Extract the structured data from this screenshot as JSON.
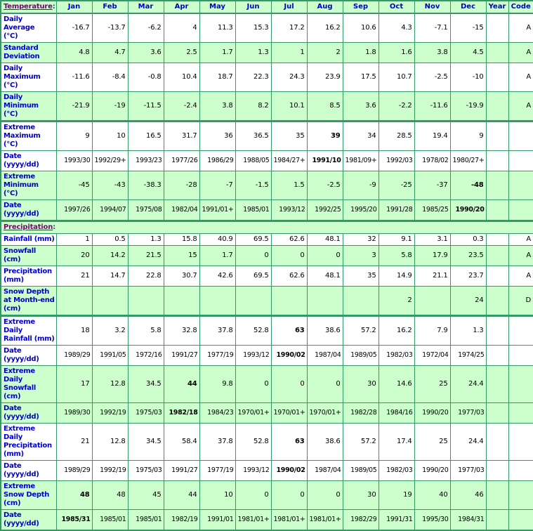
{
  "colors": {
    "row_green": "#ccffcc",
    "border_green": "#339966",
    "label_blue": "#0000cc",
    "link_purple": "#800080",
    "data_black": "#000000"
  },
  "table": {
    "colon": ":",
    "months": [
      "Jan",
      "Feb",
      "Mar",
      "Apr",
      "May",
      "Jun",
      "Jul",
      "Aug",
      "Sep",
      "Oct",
      "Nov",
      "Dec"
    ],
    "year_header": "Year",
    "code_header": "Code",
    "sections": [
      {
        "title": "Temperature",
        "rows": [
          {
            "label": "Daily Average\n(°C)",
            "shade": "w",
            "sep": false,
            "bold": [],
            "cells": [
              "-16.7",
              "-13.7",
              "-6.2",
              "4",
              "11.3",
              "15.3",
              "17.2",
              "16.2",
              "10.6",
              "4.3",
              "-7.1",
              "-15"
            ],
            "year": "",
            "code": "A"
          },
          {
            "label": "Standard\nDeviation",
            "shade": "g",
            "sep": false,
            "bold": [],
            "cells": [
              "4.8",
              "4.7",
              "3.6",
              "2.5",
              "1.7",
              "1.3",
              "1",
              "2",
              "1.8",
              "1.6",
              "3.8",
              "4.5"
            ],
            "year": "",
            "code": "A"
          },
          {
            "label": "Daily\nMaximum\n(°C)",
            "shade": "w",
            "sep": false,
            "bold": [],
            "cells": [
              "-11.6",
              "-8.4",
              "-0.8",
              "10.4",
              "18.7",
              "22.3",
              "24.3",
              "23.9",
              "17.5",
              "10.7",
              "-2.5",
              "-10"
            ],
            "year": "",
            "code": "A"
          },
          {
            "label": "Daily\nMinimum\n(°C)",
            "shade": "g",
            "sep": false,
            "bold": [],
            "cells": [
              "-21.9",
              "-19",
              "-11.5",
              "-2.4",
              "3.8",
              "8.2",
              "10.1",
              "8.5",
              "3.6",
              "-2.2",
              "-11.6",
              "-19.9"
            ],
            "year": "",
            "code": "A"
          },
          {
            "label": "Extreme\nMaximum\n(°C)",
            "shade": "w",
            "sep": true,
            "bold": [
              7
            ],
            "cells": [
              "9",
              "10",
              "16.5",
              "31.7",
              "36",
              "36.5",
              "35",
              "39",
              "34",
              "28.5",
              "19.4",
              "9"
            ],
            "year": "",
            "code": ""
          },
          {
            "label": "Date\n(yyyy/dd)",
            "shade": "w",
            "sep": false,
            "bold": [
              7
            ],
            "cells": [
              "1993/30",
              "1992/29+",
              "1993/23",
              "1977/26",
              "1986/29",
              "1988/05",
              "1984/27+",
              "1991/10",
              "1981/09+",
              "1992/03",
              "1978/02",
              "1980/27+"
            ],
            "year": "",
            "code": ""
          },
          {
            "label": "Extreme\nMinimum\n(°C)",
            "shade": "g",
            "sep": false,
            "bold": [
              11
            ],
            "cells": [
              "-45",
              "-43",
              "-38.3",
              "-28",
              "-7",
              "-1.5",
              "1.5",
              "-2.5",
              "-9",
              "-25",
              "-37",
              "-48"
            ],
            "year": "",
            "code": ""
          },
          {
            "label": "Date\n(yyyy/dd)",
            "shade": "g",
            "sep": false,
            "bold": [
              11
            ],
            "cells": [
              "1997/26",
              "1994/07",
              "1975/08",
              "1982/04",
              "1991/01+",
              "1985/01",
              "1993/12",
              "1992/25",
              "1995/20",
              "1991/28",
              "1985/25",
              "1990/20"
            ],
            "year": "",
            "code": ""
          }
        ]
      },
      {
        "title": "Precipitation",
        "rows": [
          {
            "label": "Rainfall (mm)",
            "shade": "w",
            "sep": false,
            "bold": [],
            "cells": [
              "1",
              "0.5",
              "1.3",
              "15.8",
              "40.9",
              "69.5",
              "62.6",
              "48.1",
              "32",
              "9.1",
              "3.1",
              "0.3"
            ],
            "year": "",
            "code": "A"
          },
          {
            "label": "Snowfall\n(cm)",
            "shade": "g",
            "sep": false,
            "bold": [],
            "cells": [
              "20",
              "14.2",
              "21.5",
              "15",
              "1.7",
              "0",
              "0",
              "0",
              "3",
              "5.8",
              "17.9",
              "23.5"
            ],
            "year": "",
            "code": "A"
          },
          {
            "label": "Precipitation\n(mm)",
            "shade": "w",
            "sep": false,
            "bold": [],
            "cells": [
              "21",
              "14.7",
              "22.8",
              "30.7",
              "42.6",
              "69.5",
              "62.6",
              "48.1",
              "35",
              "14.9",
              "21.1",
              "23.7"
            ],
            "year": "",
            "code": "A"
          },
          {
            "label": "Snow Depth\nat Month-end\n(cm)",
            "shade": "g",
            "sep": false,
            "bold": [],
            "cells": [
              "",
              "",
              "",
              "",
              "",
              "",
              "",
              "",
              "",
              "2",
              "",
              "24"
            ],
            "year": "",
            "code": "D"
          },
          {
            "label": "Extreme Daily\nRainfall (mm)",
            "shade": "w",
            "sep": true,
            "bold": [
              6
            ],
            "cells": [
              "18",
              "3.2",
              "5.8",
              "32.8",
              "37.8",
              "52.8",
              "63",
              "38.6",
              "57.2",
              "16.2",
              "7.9",
              "1.3"
            ],
            "year": "",
            "code": ""
          },
          {
            "label": "Date\n(yyyy/dd)",
            "shade": "w",
            "sep": false,
            "bold": [
              6
            ],
            "cells": [
              "1989/29",
              "1991/05",
              "1972/16",
              "1991/27",
              "1977/19",
              "1993/12",
              "1990/02",
              "1987/04",
              "1989/05",
              "1982/03",
              "1972/04",
              "1974/25"
            ],
            "year": "",
            "code": ""
          },
          {
            "label": "Extreme Daily\nSnowfall\n(cm)",
            "shade": "g",
            "sep": false,
            "bold": [
              3
            ],
            "cells": [
              "17",
              "12.8",
              "34.5",
              "44",
              "9.8",
              "0",
              "0",
              "0",
              "30",
              "14.6",
              "25",
              "24.4"
            ],
            "year": "",
            "code": ""
          },
          {
            "label": "Date\n(yyyy/dd)",
            "shade": "g",
            "sep": false,
            "bold": [
              3
            ],
            "cells": [
              "1989/30",
              "1992/19",
              "1975/03",
              "1982/18",
              "1984/23",
              "1970/01+",
              "1970/01+",
              "1970/01+",
              "1982/28",
              "1984/16",
              "1990/20",
              "1977/03"
            ],
            "year": "",
            "code": ""
          },
          {
            "label": "Extreme Daily\nPrecipitation\n(mm)",
            "shade": "w",
            "sep": false,
            "bold": [
              6
            ],
            "cells": [
              "21",
              "12.8",
              "34.5",
              "58.4",
              "37.8",
              "52.8",
              "63",
              "38.6",
              "57.2",
              "17.4",
              "25",
              "24.4"
            ],
            "year": "",
            "code": ""
          },
          {
            "label": "Date\n(yyyy/dd)",
            "shade": "w",
            "sep": false,
            "bold": [
              6
            ],
            "cells": [
              "1989/29",
              "1992/19",
              "1975/03",
              "1991/27",
              "1977/19",
              "1993/12",
              "1990/02",
              "1987/04",
              "1989/05",
              "1982/03",
              "1990/20",
              "1977/03"
            ],
            "year": "",
            "code": ""
          },
          {
            "label": "Extreme\nSnow Depth\n(cm)",
            "shade": "g",
            "sep": false,
            "bold": [
              0
            ],
            "cells": [
              "48",
              "48",
              "45",
              "44",
              "10",
              "0",
              "0",
              "0",
              "30",
              "19",
              "40",
              "46"
            ],
            "year": "",
            "code": ""
          },
          {
            "label": "Date\n(yyyy/dd)",
            "shade": "g",
            "sep": false,
            "bold": [
              0
            ],
            "cells": [
              "1985/31",
              "1985/01",
              "1985/01",
              "1982/19",
              "1991/01",
              "1981/01+",
              "1981/01+",
              "1981/01+",
              "1982/29",
              "1991/31",
              "1995/30",
              "1984/31"
            ],
            "year": "",
            "code": ""
          }
        ]
      }
    ]
  }
}
